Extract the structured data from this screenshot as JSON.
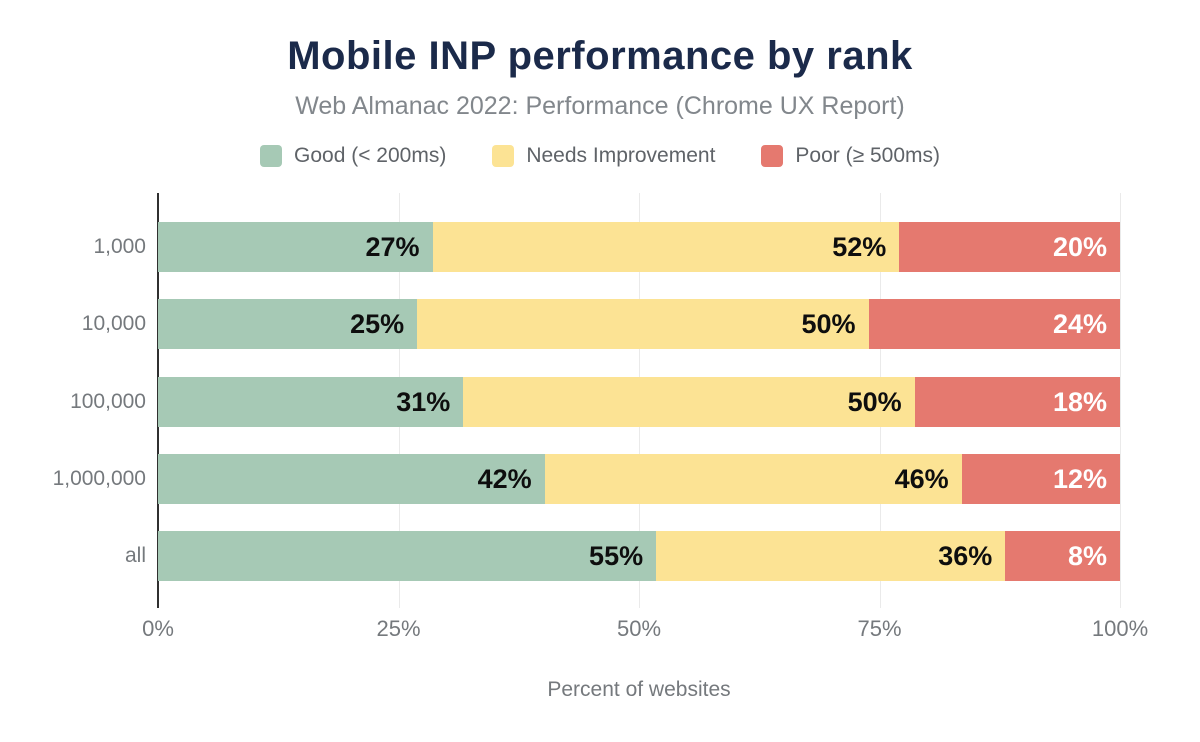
{
  "title": "Mobile INP performance by rank",
  "subtitle": "Web Almanac 2022: Performance (Chrome UX Report)",
  "legend": [
    {
      "key": "good",
      "label": "Good (< 200ms)",
      "color": "#a6c9b5",
      "label_color": "#0e0e0e"
    },
    {
      "key": "needs-improvement",
      "label": "Needs Improvement",
      "color": "#fce394",
      "label_color": "#0e0e0e"
    },
    {
      "key": "poor",
      "label": "Poor (≥ 500ms)",
      "color": "#e5796f",
      "label_color": "#ffffff"
    }
  ],
  "chart_data": {
    "type": "bar",
    "stacked": true,
    "orientation": "horizontal",
    "title": "Mobile INP performance by rank",
    "subtitle": "Web Almanac 2022: Performance (Chrome UX Report)",
    "categories": [
      "1,000",
      "10,000",
      "100,000",
      "1,000,000",
      "all"
    ],
    "series": [
      {
        "name": "Good (< 200ms)",
        "values": [
          27,
          25,
          31,
          42,
          55
        ]
      },
      {
        "name": "Needs Improvement",
        "values": [
          52,
          50,
          50,
          46,
          36
        ]
      },
      {
        "name": "Poor (≥ 500ms)",
        "values": [
          20,
          24,
          18,
          12,
          8
        ]
      }
    ],
    "value_suffix": "%",
    "xlabel": "Percent of websites",
    "x_ticks": [
      {
        "value": 0,
        "label": "0%"
      },
      {
        "value": 25,
        "label": "25%"
      },
      {
        "value": 50,
        "label": "50%"
      },
      {
        "value": 75,
        "label": "75%"
      },
      {
        "value": 100,
        "label": "100%"
      }
    ],
    "xlim": [
      0,
      100
    ],
    "grid": "vertical",
    "legend_position": "top"
  },
  "colors": {
    "background": "#ffffff",
    "title": "#1b2a4a",
    "subtitle": "#82878c",
    "legend_text": "#5f6368",
    "axis_text": "#75797d",
    "gridline": "#eaeaea",
    "axis_line": "#303030"
  }
}
